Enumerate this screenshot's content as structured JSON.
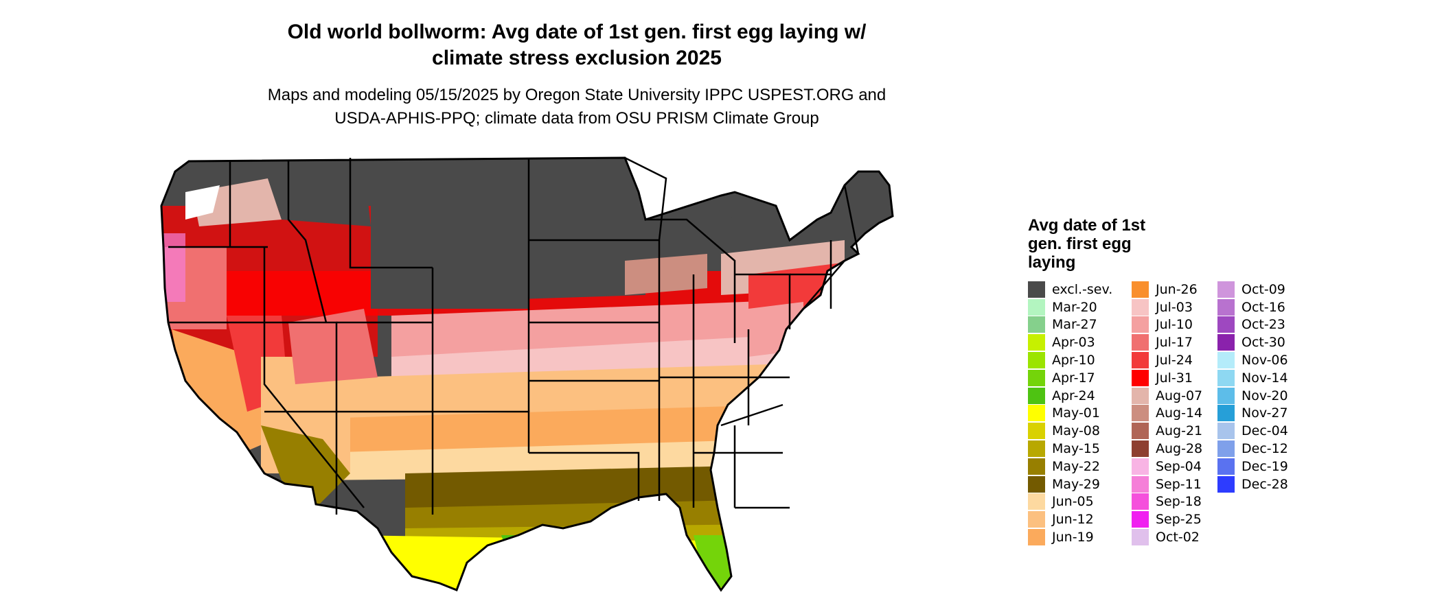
{
  "title_line1": "Old world bollworm: Avg date of 1st gen. first egg laying w/",
  "title_line2": "climate stress exclusion 2025",
  "subtitle_line1": "Maps and modeling 05/15/2025 by Oregon State University IPPC USPEST.ORG and",
  "subtitle_line2": "USDA-APHIS-PPQ; climate data from OSU PRISM Climate Group",
  "legend": {
    "title_line1": "Avg date of 1st",
    "title_line2": "gen. first egg",
    "title_line3": "laying",
    "columns": [
      [
        {
          "label": "excl.-sev.",
          "color": "#4a4a4a"
        },
        {
          "label": "Mar-20",
          "color": "#b3f5c0"
        },
        {
          "label": "Mar-27",
          "color": "#85d08c"
        },
        {
          "label": "Apr-03",
          "color": "#c6f000"
        },
        {
          "label": "Apr-10",
          "color": "#9be400"
        },
        {
          "label": "Apr-17",
          "color": "#74d40a"
        },
        {
          "label": "Apr-24",
          "color": "#4ec312"
        },
        {
          "label": "May-01",
          "color": "#ffff00"
        },
        {
          "label": "May-08",
          "color": "#d9d100"
        },
        {
          "label": "May-15",
          "color": "#b8a800"
        },
        {
          "label": "May-22",
          "color": "#977f00"
        },
        {
          "label": "May-29",
          "color": "#735a00"
        },
        {
          "label": "Jun-05",
          "color": "#fdd9a0"
        },
        {
          "label": "Jun-12",
          "color": "#fcc080"
        },
        {
          "label": "Jun-19",
          "color": "#fbaa5c"
        }
      ],
      [
        {
          "label": "Jun-26",
          "color": "#f98f2d"
        },
        {
          "label": "Jul-03",
          "color": "#f7c4c4"
        },
        {
          "label": "Jul-10",
          "color": "#f4a0a0"
        },
        {
          "label": "Jul-17",
          "color": "#f07070"
        },
        {
          "label": "Jul-24",
          "color": "#f23a3a"
        },
        {
          "label": "Jul-31",
          "color": "#ff0000"
        },
        {
          "label": "Aug-07",
          "color": "#e3b5ab"
        },
        {
          "label": "Aug-14",
          "color": "#cc8e80"
        },
        {
          "label": "Aug-21",
          "color": "#b06556"
        },
        {
          "label": "Aug-28",
          "color": "#8e3f30"
        },
        {
          "label": "Sep-04",
          "color": "#f8b4e4"
        },
        {
          "label": "Sep-11",
          "color": "#f57fd8"
        },
        {
          "label": "Sep-18",
          "color": "#f550dc"
        },
        {
          "label": "Sep-25",
          "color": "#f020f0"
        },
        {
          "label": "Oct-02",
          "color": "#e0c0ec"
        }
      ],
      [
        {
          "label": "Oct-09",
          "color": "#cf95dc"
        },
        {
          "label": "Oct-16",
          "color": "#b872cf"
        },
        {
          "label": "Oct-23",
          "color": "#9e48c0"
        },
        {
          "label": "Oct-30",
          "color": "#8a22ac"
        },
        {
          "label": "Nov-06",
          "color": "#b4ecfa"
        },
        {
          "label": "Nov-14",
          "color": "#8ed8f2"
        },
        {
          "label": "Nov-20",
          "color": "#5dbde9"
        },
        {
          "label": "Nov-27",
          "color": "#269fd8"
        },
        {
          "label": "Dec-04",
          "color": "#a8c4ec"
        },
        {
          "label": "Dec-12",
          "color": "#7fa0ea"
        },
        {
          "label": "Dec-19",
          "color": "#5a72f0"
        },
        {
          "label": "Dec-28",
          "color": "#2d3cff"
        }
      ]
    ]
  }
}
